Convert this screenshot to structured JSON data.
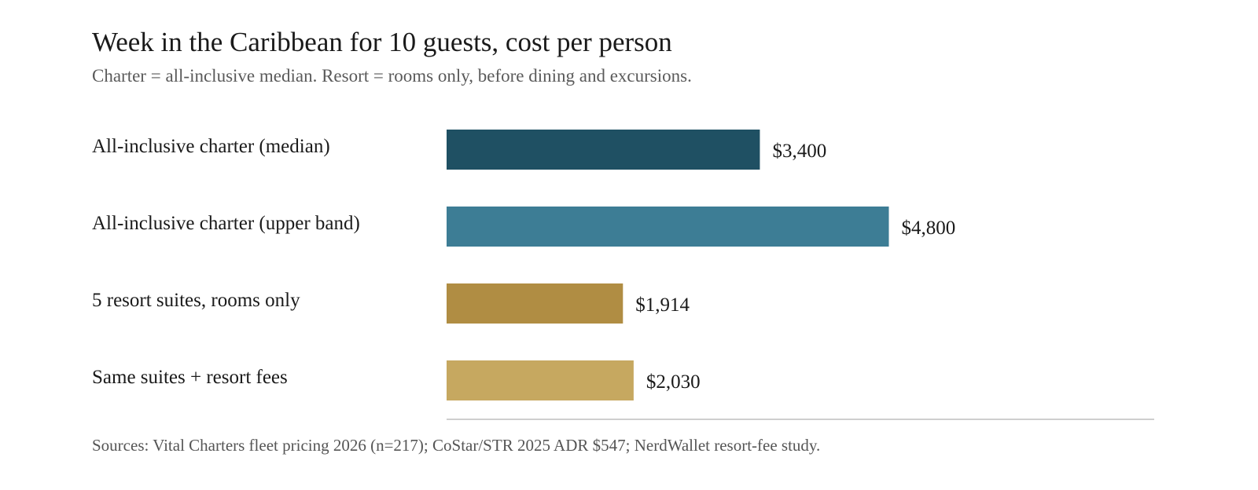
{
  "header": {
    "title": "Week in the Caribbean for 10 guests, cost per person",
    "subtitle": "Charter = all-inclusive median. Resort = rooms only, before dining and excursions."
  },
  "footer": {
    "source": "Sources: Vital Charters fleet pricing 2026 (n=217); CoStar/STR 2025 ADR $547; NerdWallet resort-fee study."
  },
  "chart_data": {
    "type": "bar",
    "orientation": "horizontal",
    "categories": [
      "All-inclusive charter (median)",
      "All-inclusive charter (upper band)",
      "5 resort suites, rooms only",
      "Same suites + resort fees"
    ],
    "values": [
      3400,
      4800,
      1914,
      2030
    ],
    "value_labels": [
      "$3,400",
      "$4,800",
      "$1,914",
      "$2,030"
    ],
    "colors": [
      "#1f5063",
      "#3d7d95",
      "#b08d43",
      "#c6a860"
    ],
    "xlim": [
      0,
      7680
    ],
    "grid": false,
    "legend": "none"
  }
}
